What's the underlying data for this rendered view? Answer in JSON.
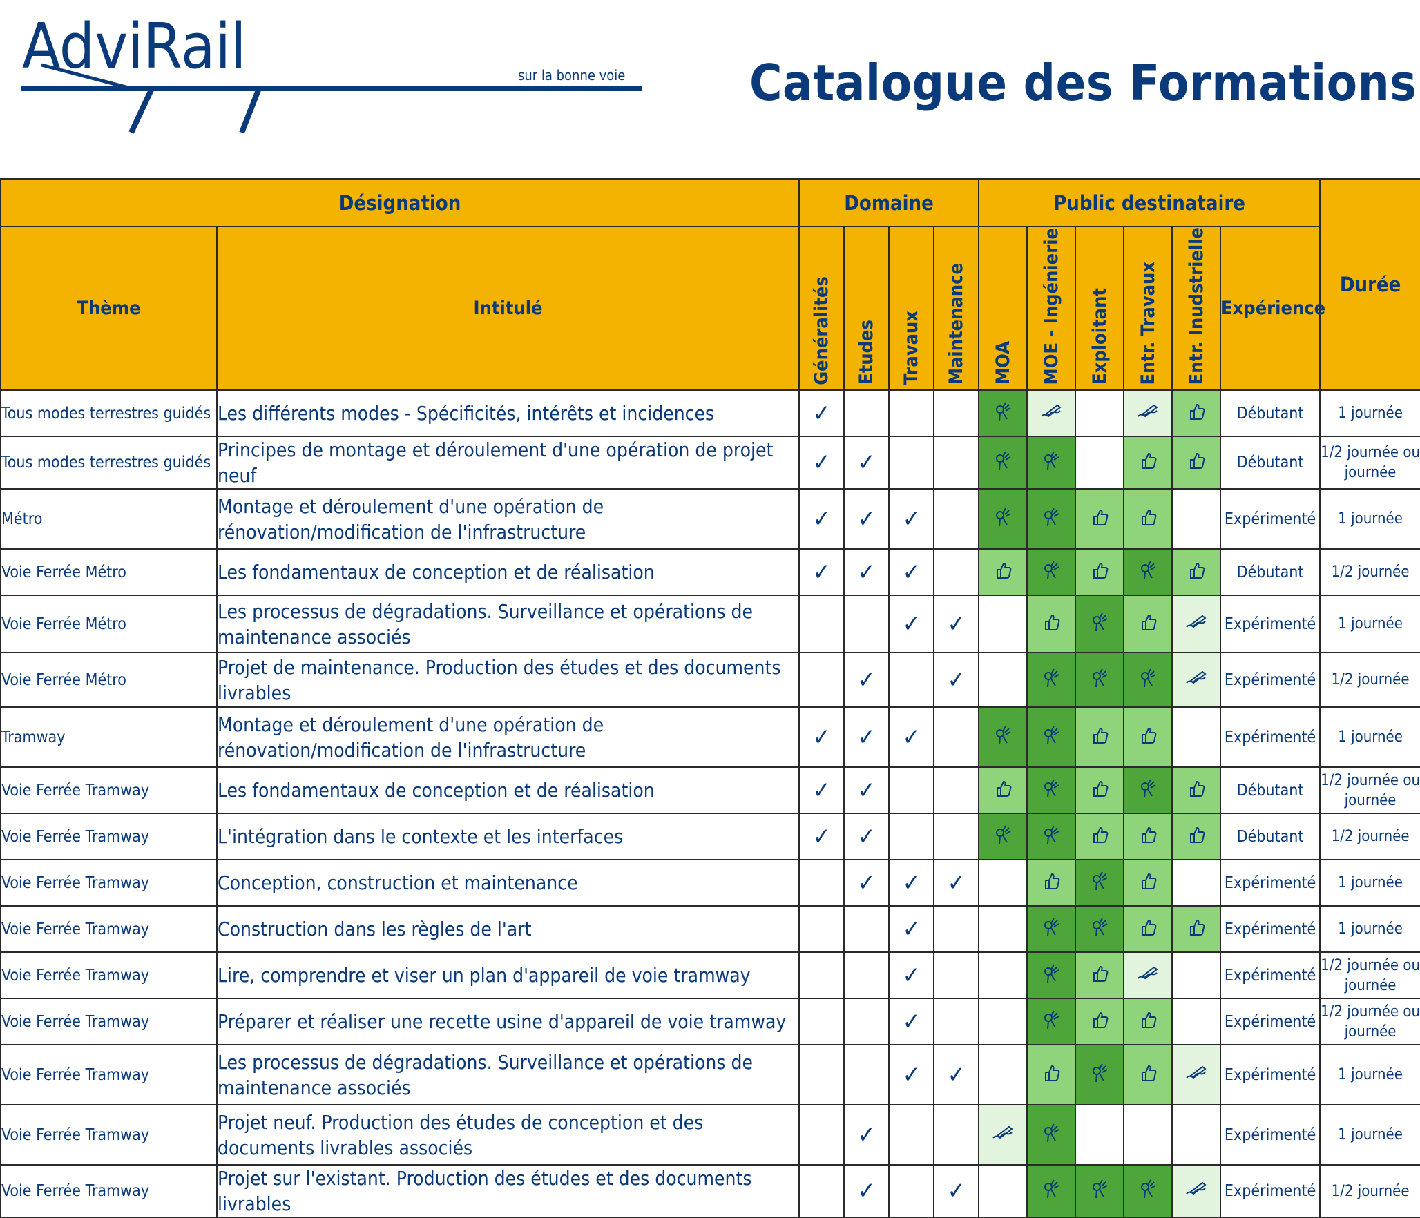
{
  "brand": {
    "name": "AdviRail",
    "tagline": "sur la bonne voie"
  },
  "title": "Catalogue des Formations",
  "colors": {
    "header_bg": "#f3b300",
    "text": "#0b3a7a",
    "level_none": "#ffffff",
    "level_1": "#e2f4de",
    "level_2": "#8fd47b",
    "level_3": "#4ea63a"
  },
  "headers": {
    "designation": "Désignation",
    "domaine": "Domaine",
    "public": "Public destinataire",
    "duree": "Durée",
    "theme": "Thème",
    "intitule": "Intitulé",
    "domains": [
      "Généralités",
      "Etudes",
      "Travaux",
      "Maintenance"
    ],
    "audiences": [
      "MOA",
      "MOE - Ingénierie",
      "Exploitant",
      "Entr. Travaux",
      "Entr. Inudstrielle"
    ],
    "experience": "Expérience"
  },
  "check_symbol": "✓",
  "icon_names": {
    "1": "writing-hand-icon",
    "2": "thumbs-up-icon",
    "3": "ok-hand-icon"
  },
  "rows": [
    {
      "theme": "Tous modes terrestres guidés",
      "title": "Les différents modes - Spécificités, intérêts et incidences",
      "domains": [
        true,
        false,
        false,
        false
      ],
      "levels": [
        3,
        1,
        0,
        1,
        2
      ],
      "experience": "Débutant",
      "duration": "1 journée"
    },
    {
      "theme": "Tous modes terrestres guidés",
      "title": "Principes de montage et déroulement d'une opération de projet neuf",
      "domains": [
        true,
        true,
        false,
        false
      ],
      "levels": [
        3,
        3,
        0,
        2,
        2
      ],
      "experience": "Débutant",
      "duration": "1/2 journée ou journée"
    },
    {
      "theme": "Métro",
      "title": "Montage et déroulement d'une opération de rénovation/modification de l'infrastructure",
      "domains": [
        true,
        true,
        true,
        false
      ],
      "levels": [
        3,
        3,
        2,
        2,
        0
      ],
      "experience": "Expérimenté",
      "duration": "1 journée"
    },
    {
      "theme": "Voie Ferrée Métro",
      "title": "Les fondamentaux de conception et de réalisation",
      "domains": [
        true,
        true,
        true,
        false
      ],
      "levels": [
        2,
        3,
        2,
        3,
        2
      ],
      "experience": "Débutant",
      "duration": "1/2 journée"
    },
    {
      "theme": "Voie Ferrée Métro",
      "title": "Les processus de dégradations. Surveillance et opérations de maintenance associés",
      "domains": [
        false,
        false,
        true,
        true
      ],
      "levels": [
        0,
        2,
        3,
        2,
        1
      ],
      "experience": "Expérimenté",
      "duration": "1 journée"
    },
    {
      "theme": "Voie Ferrée Métro",
      "title": "Projet de maintenance. Production des études et des documents livrables",
      "domains": [
        false,
        true,
        false,
        true
      ],
      "levels": [
        0,
        3,
        3,
        3,
        1
      ],
      "experience": "Expérimenté",
      "duration": "1/2 journée"
    },
    {
      "theme": "Tramway",
      "title": "Montage et déroulement d'une opération de rénovation/modification de l'infrastructure",
      "domains": [
        true,
        true,
        true,
        false
      ],
      "levels": [
        3,
        3,
        2,
        2,
        0
      ],
      "experience": "Expérimenté",
      "duration": "1 journée"
    },
    {
      "theme": "Voie Ferrée Tramway",
      "title": "Les fondamentaux de conception et de réalisation",
      "domains": [
        true,
        true,
        false,
        false
      ],
      "levels": [
        2,
        3,
        2,
        3,
        2
      ],
      "experience": "Débutant",
      "duration": "1/2 journée ou journée"
    },
    {
      "theme": "Voie Ferrée Tramway",
      "title": "L'intégration dans le contexte et les interfaces",
      "domains": [
        true,
        true,
        false,
        false
      ],
      "levels": [
        3,
        3,
        2,
        2,
        2
      ],
      "experience": "Débutant",
      "duration": "1/2 journée"
    },
    {
      "theme": "Voie Ferrée Tramway",
      "title": "Conception, construction et maintenance",
      "domains": [
        false,
        true,
        true,
        true
      ],
      "levels": [
        0,
        2,
        3,
        2,
        0
      ],
      "experience": "Expérimenté",
      "duration": "1 journée"
    },
    {
      "theme": "Voie Ferrée Tramway",
      "title": "Construction dans les règles de l'art",
      "domains": [
        false,
        false,
        true,
        false
      ],
      "levels": [
        0,
        3,
        3,
        2,
        2
      ],
      "experience": "Expérimenté",
      "duration": "1 journée"
    },
    {
      "theme": "Voie Ferrée Tramway",
      "title": "Lire, comprendre et viser un plan d'appareil de voie tramway",
      "domains": [
        false,
        false,
        true,
        false
      ],
      "levels": [
        0,
        3,
        2,
        1,
        0
      ],
      "experience": "Expérimenté",
      "duration": "1/2 journée ou journée"
    },
    {
      "theme": "Voie Ferrée Tramway",
      "title": "Préparer et réaliser une recette usine d'appareil de voie tramway",
      "domains": [
        false,
        false,
        true,
        false
      ],
      "levels": [
        0,
        3,
        2,
        2,
        0
      ],
      "experience": "Expérimenté",
      "duration": "1/2 journée ou journée"
    },
    {
      "theme": "Voie Ferrée Tramway",
      "title": "Les processus de dégradations. Surveillance et opérations de maintenance associés",
      "domains": [
        false,
        false,
        true,
        true
      ],
      "levels": [
        0,
        2,
        3,
        2,
        1
      ],
      "experience": "Expérimenté",
      "duration": "1 journée"
    },
    {
      "theme": "Voie Ferrée Tramway",
      "title": "Projet neuf. Production des études de conception et des documents livrables associés",
      "domains": [
        false,
        true,
        false,
        false
      ],
      "levels": [
        1,
        3,
        0,
        0,
        0
      ],
      "experience": "Expérimenté",
      "duration": "1 journée"
    },
    {
      "theme": "Voie Ferrée Tramway",
      "title": "Projet sur l'existant. Production des études et des documents livrables",
      "domains": [
        false,
        true,
        false,
        true
      ],
      "levels": [
        0,
        3,
        3,
        3,
        1
      ],
      "experience": "Expérimenté",
      "duration": "1/2 journée"
    }
  ]
}
